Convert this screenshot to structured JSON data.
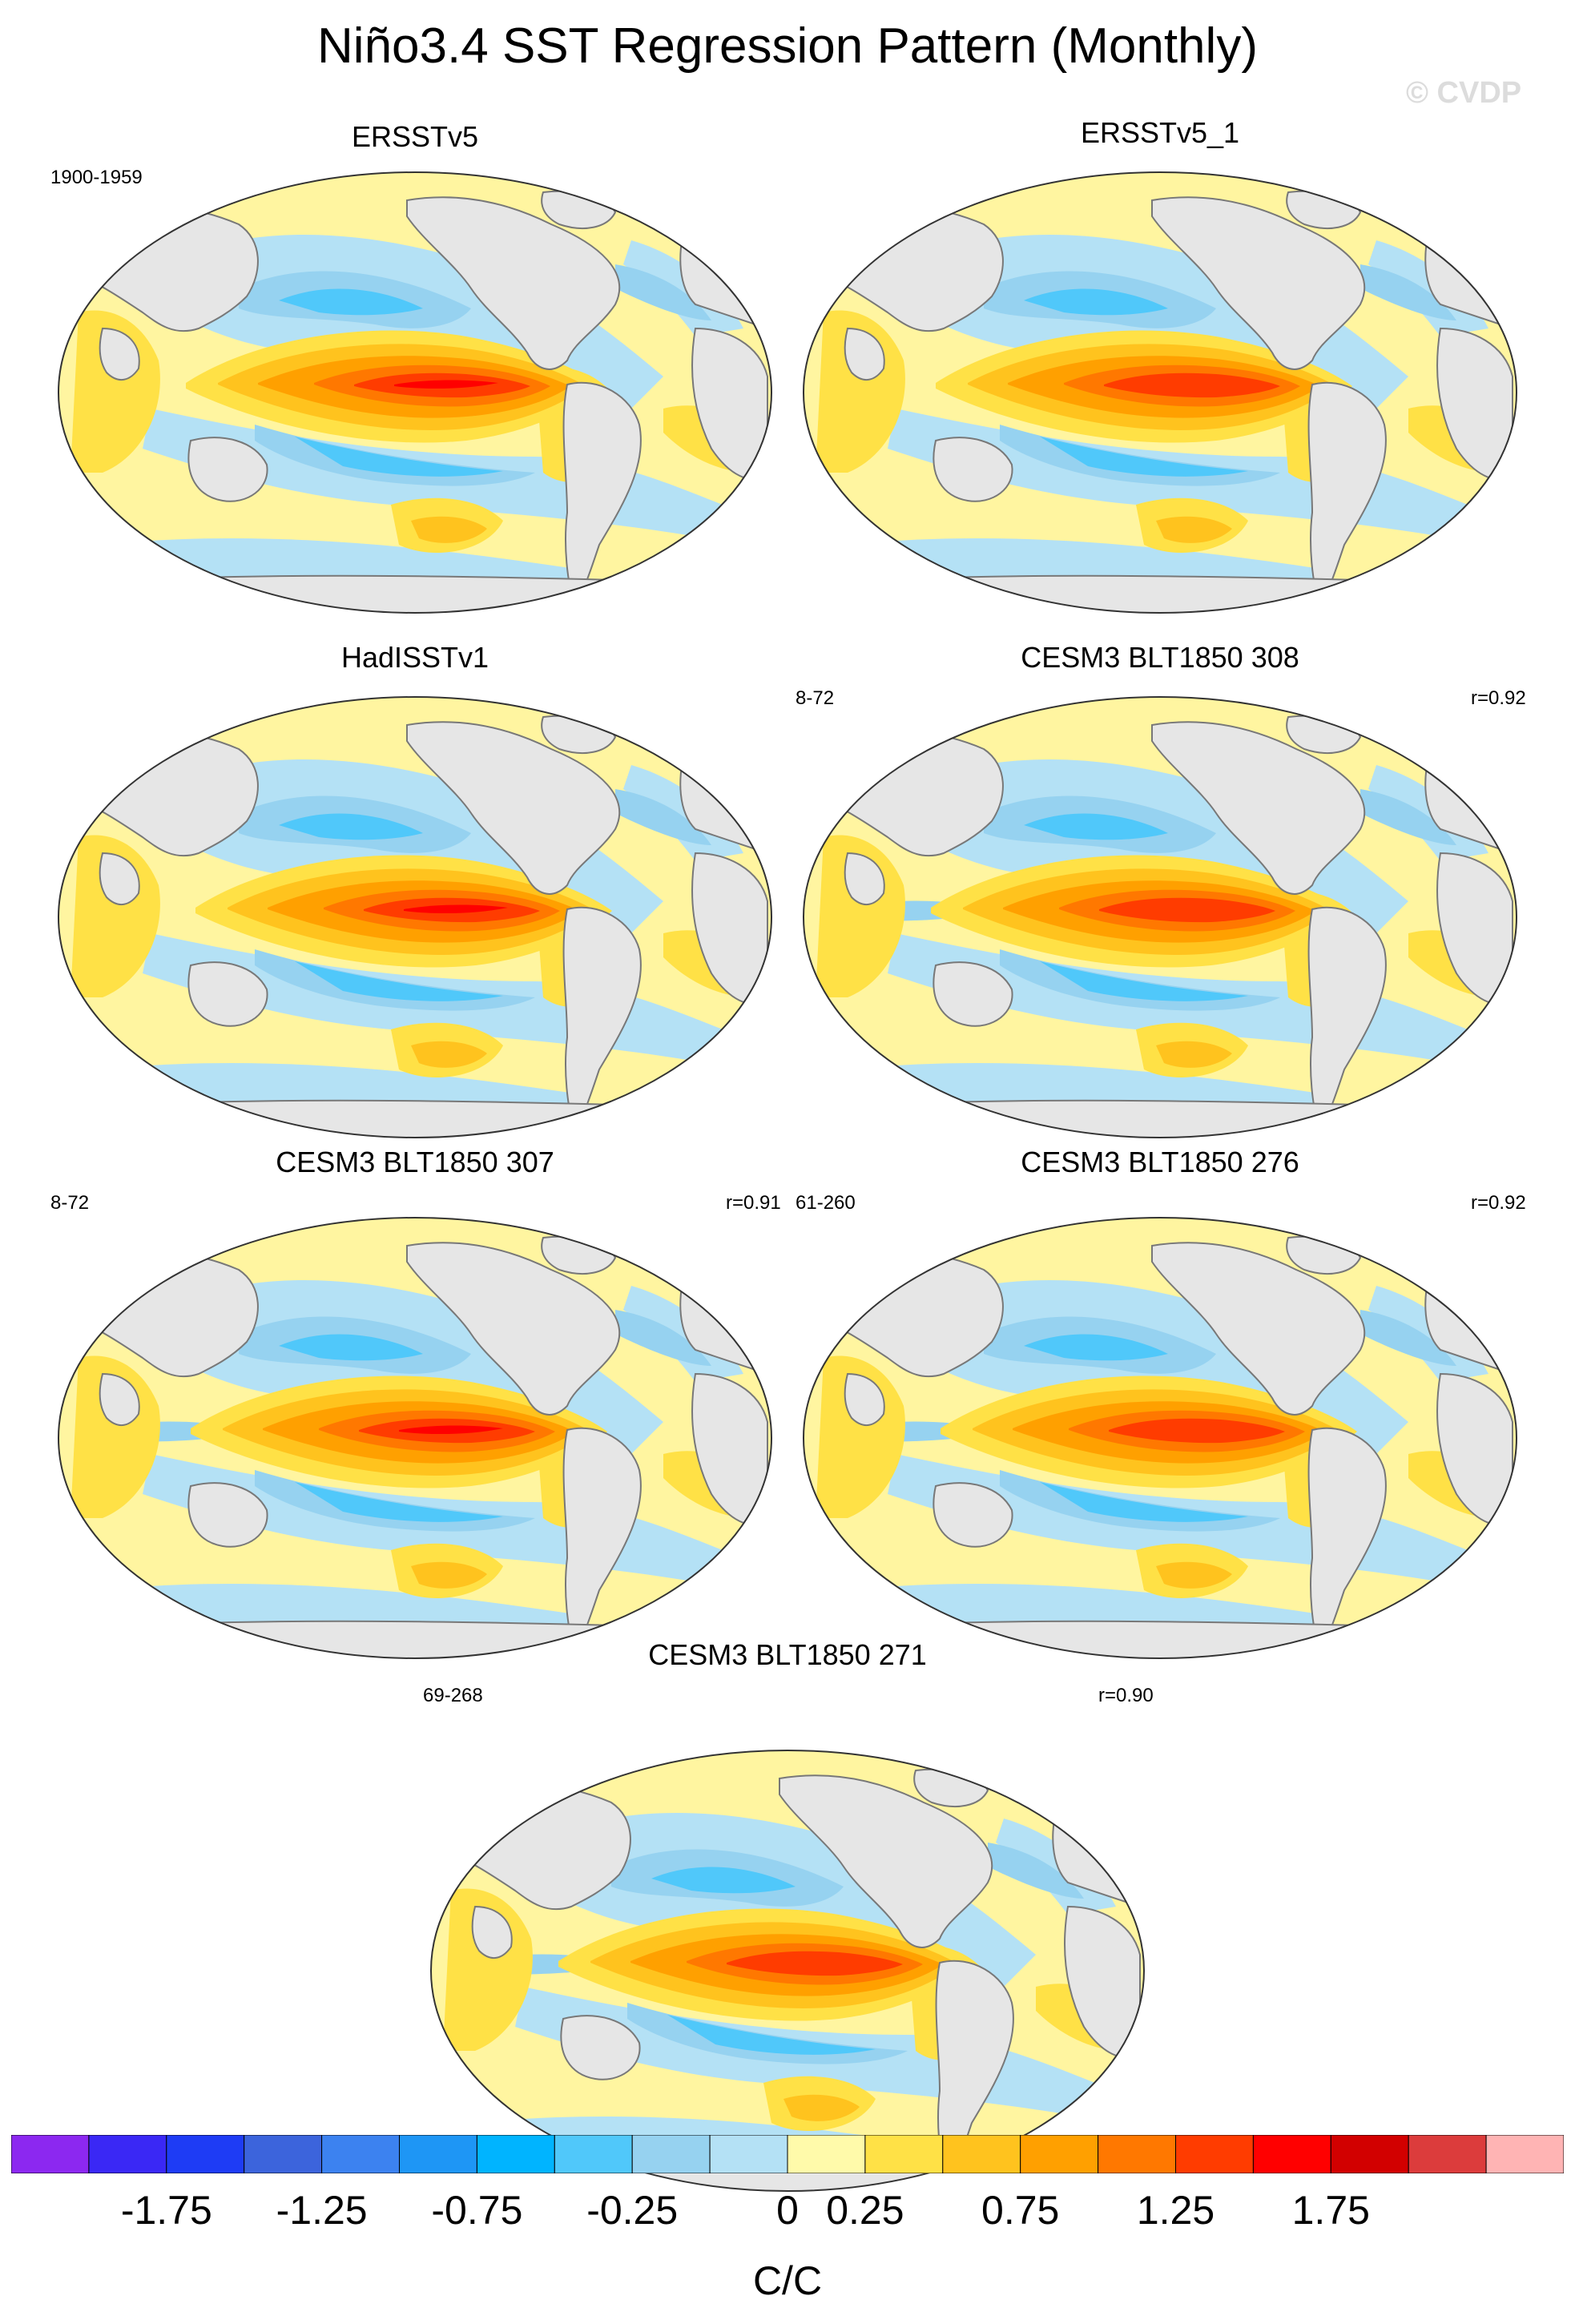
{
  "title": "Niño3.4 SST Regression Pattern (Monthly)",
  "watermark": "© CVDP",
  "panels": [
    {
      "title": "ERSSTv5",
      "left_label": "1900-1959",
      "right_label": "",
      "variant": 0
    },
    {
      "title": "ERSSTv5_1",
      "left_label": "",
      "right_label": "",
      "variant": 1
    },
    {
      "title": "HadISSTv1",
      "left_label": "",
      "right_label": "",
      "variant": 2
    },
    {
      "title": "CESM3 BLT1850 308",
      "left_label": "8-72",
      "right_label": "r=0.92",
      "variant": 3
    },
    {
      "title": "CESM3 BLT1850 307",
      "left_label": "8-72",
      "right_label": "r=0.91",
      "variant": 4
    },
    {
      "title": "CESM3 BLT1850 276",
      "left_label": "61-260",
      "right_label": "r=0.92",
      "variant": 5
    },
    {
      "title": "CESM3 BLT1850 271",
      "left_label": "69-268",
      "right_label": "r=0.90",
      "variant": 6
    }
  ],
  "colorbar": {
    "colors": [
      "#8c28f0",
      "#3a28f5",
      "#1e3cf5",
      "#3c64dc",
      "#3c82f0",
      "#1e96f5",
      "#00b4ff",
      "#50c8fa",
      "#96d2f0",
      "#b4e1f5",
      "#fffaaa",
      "#ffe146",
      "#ffc31e",
      "#ffa000",
      "#ff7800",
      "#ff3c00",
      "#ff0000",
      "#d20000",
      "#dc3c3c",
      "#ffb4b4"
    ],
    "tick_labels": [
      "-1.75",
      "-1.25",
      "-0.75",
      "-0.25",
      "0",
      "0.25",
      "0.75",
      "1.25",
      "1.75"
    ],
    "units": "C/C"
  },
  "colors": {
    "land": "#e6e6e6",
    "coast": "#787878"
  }
}
